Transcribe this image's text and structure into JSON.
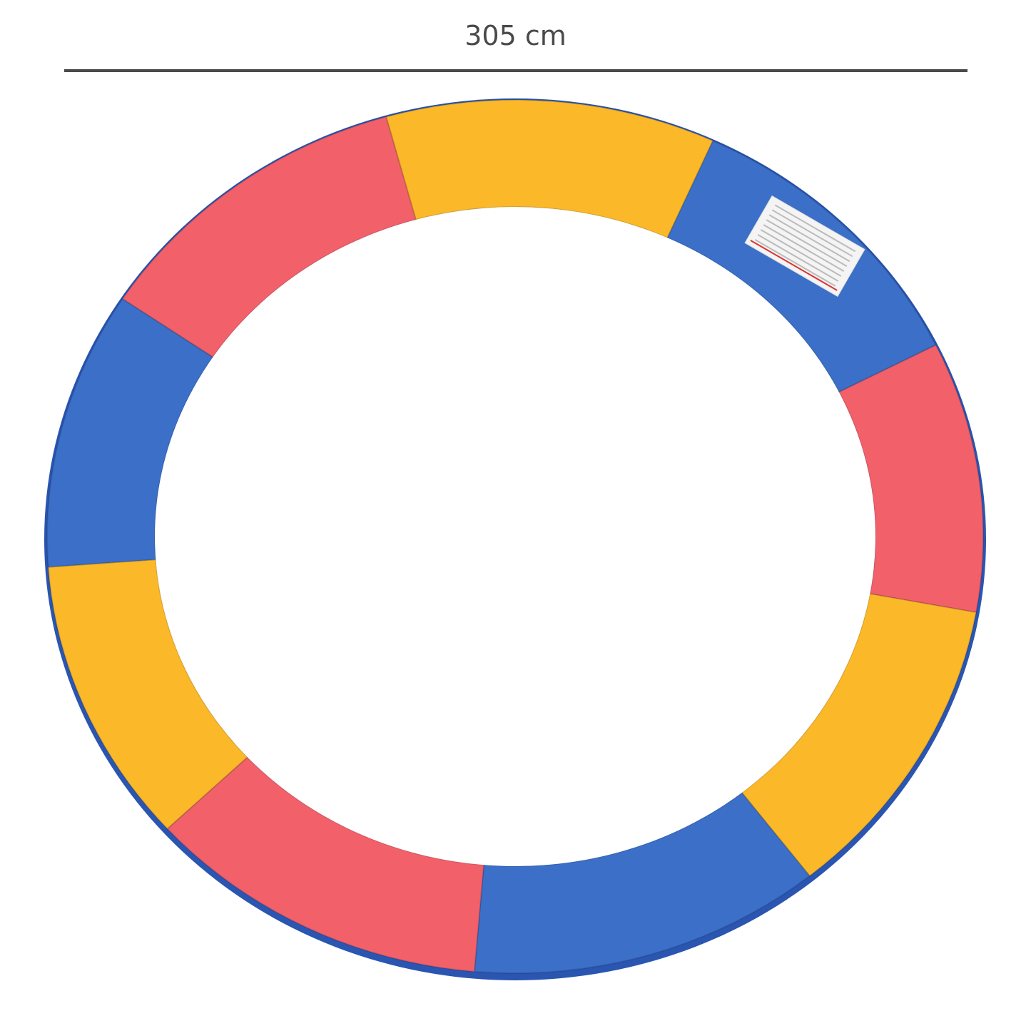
{
  "dimension": {
    "label": "305 cm"
  },
  "product": {
    "segment_colors": [
      "#fbb829",
      "#3b6fc8",
      "#f2606a",
      "#fbb829",
      "#3b6fc8",
      "#f2606a",
      "#fbb829",
      "#3b6fc8",
      "#f2606a"
    ],
    "edge_color": "#2a55b0",
    "has_warning_label": true
  }
}
